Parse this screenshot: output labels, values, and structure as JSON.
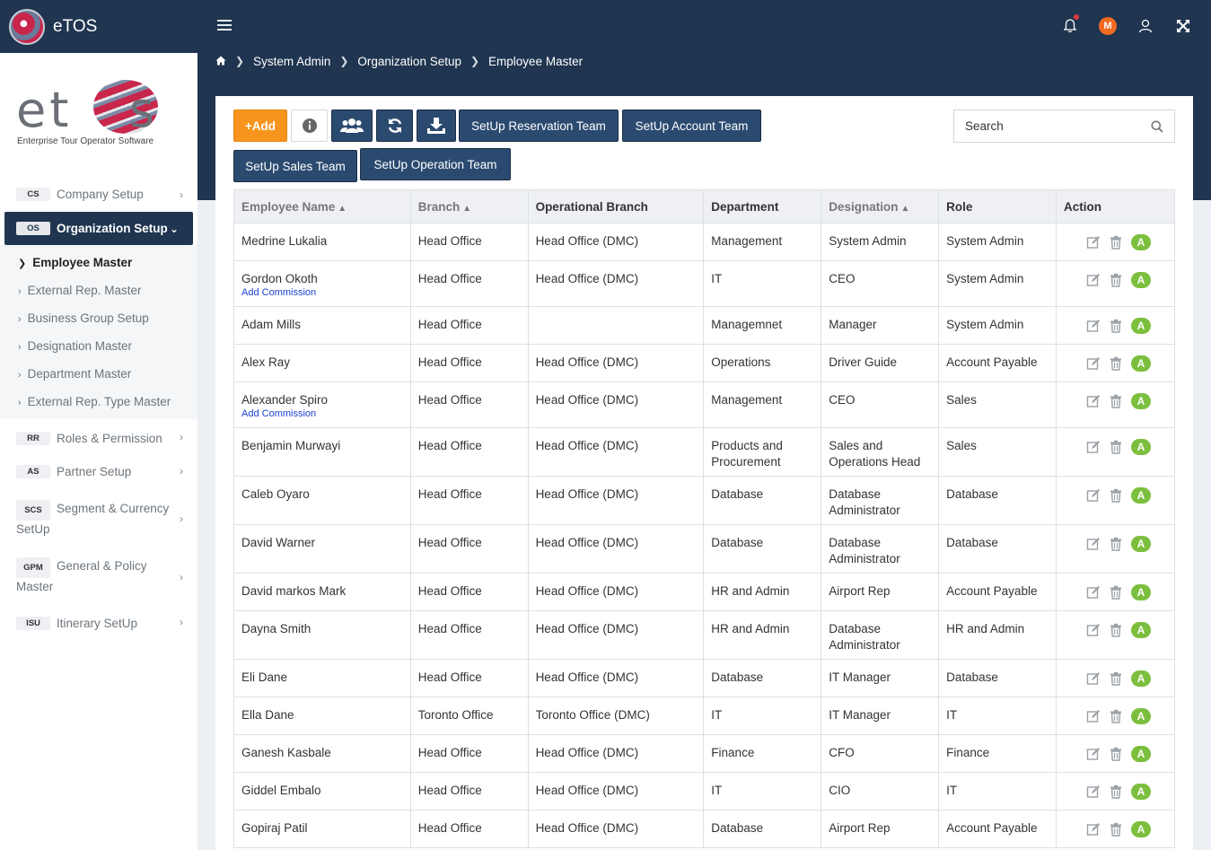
{
  "app": {
    "name": "eTOS"
  },
  "topbar": {
    "avatar_initial": "M"
  },
  "breadcrumb": [
    "System Admin",
    "Organization Setup",
    "Employee Master"
  ],
  "logo": {
    "tagline": "Enterprise Tour Operator Software"
  },
  "sidebar": {
    "items": [
      {
        "abbr": "CS",
        "label": "Company Setup"
      },
      {
        "abbr": "OS",
        "label": "Organization Setup",
        "active": true
      },
      {
        "abbr": "RR",
        "label": "Roles & Permission"
      },
      {
        "abbr": "AS",
        "label": "Partner Setup"
      },
      {
        "abbr": "SCS",
        "label": "Segment & Currency SetUp"
      },
      {
        "abbr": "GPM",
        "label": "General & Policy Master"
      },
      {
        "abbr": "ISU",
        "label": "Itinerary SetUp"
      }
    ],
    "submenu": [
      "Employee Master",
      "External Rep. Master",
      "Business Group Setup",
      "Designation Master",
      "Department Master",
      "External Rep. Type Master"
    ]
  },
  "toolbar": {
    "add_label": "+Add",
    "reservation_team": "SetUp Reservation Team",
    "account_team": "SetUp Account Team",
    "sales_team": "SetUp Sales Team",
    "operation_team": "SetUp Operation Team"
  },
  "search": {
    "placeholder": "Search"
  },
  "table": {
    "headers": [
      "Employee Name",
      "Branch",
      "Operational Branch",
      "Department",
      "Designation",
      "Role",
      "Action"
    ],
    "rows": [
      {
        "name": "Medrine Lukalia",
        "branch": "Head Office",
        "op_branch": "Head Office (DMC)",
        "department": "Management",
        "designation": "System Admin",
        "role": "System Admin"
      },
      {
        "name": "Gordon Okoth",
        "commission": "Add Commission",
        "branch": "Head Office",
        "op_branch": "Head Office (DMC)",
        "department": "IT",
        "designation": "CEO",
        "role": "System Admin"
      },
      {
        "name": "Adam Mills",
        "branch": "Head Office",
        "op_branch": "",
        "department": "Managemnet",
        "designation": "Manager",
        "role": "System Admin"
      },
      {
        "name": "Alex Ray",
        "branch": "Head Office",
        "op_branch": "Head Office (DMC)",
        "department": "Operations",
        "designation": "Driver Guide",
        "role": "Account Payable"
      },
      {
        "name": "Alexander Spiro",
        "commission": "Add Commission",
        "branch": "Head Office",
        "op_branch": "Head Office (DMC)",
        "department": "Management",
        "designation": "CEO",
        "role": "Sales"
      },
      {
        "name": "Benjamin Murwayi",
        "branch": "Head Office",
        "op_branch": "Head Office (DMC)",
        "department": "Products and Procurement",
        "designation": "Sales and Operations Head",
        "role": "Sales"
      },
      {
        "name": "Caleb Oyaro",
        "branch": "Head Office",
        "op_branch": "Head Office (DMC)",
        "department": "Database",
        "designation": "Database Administrator",
        "role": "Database"
      },
      {
        "name": "David Warner",
        "branch": "Head Office",
        "op_branch": "Head Office (DMC)",
        "department": "Database",
        "designation": "Database Administrator",
        "role": "Database"
      },
      {
        "name": "David markos Mark",
        "branch": "Head Office",
        "op_branch": "Head Office (DMC)",
        "department": "HR and Admin",
        "designation": "Airport Rep",
        "role": "Account Payable"
      },
      {
        "name": "Dayna Smith",
        "branch": "Head Office",
        "op_branch": "Head Office (DMC)",
        "department": "HR and Admin",
        "designation": "Database Administrator",
        "role": "HR and Admin"
      },
      {
        "name": "Eli Dane",
        "branch": "Head Office",
        "op_branch": "Head Office (DMC)",
        "department": "Database",
        "designation": "IT Manager",
        "role": "Database"
      },
      {
        "name": "Ella Dane",
        "branch": "Toronto Office",
        "op_branch": "Toronto Office (DMC)",
        "department": "IT",
        "designation": "IT Manager",
        "role": "IT"
      },
      {
        "name": "Ganesh Kasbale",
        "branch": "Head Office",
        "op_branch": "Head Office (DMC)",
        "department": "Finance",
        "designation": "CFO",
        "role": "Finance"
      },
      {
        "name": "Giddel Embalo",
        "branch": "Head Office",
        "op_branch": "Head Office (DMC)",
        "department": "IT",
        "designation": "CIO",
        "role": "IT"
      },
      {
        "name": "Gopiraj Patil",
        "branch": "Head Office",
        "op_branch": "Head Office (DMC)",
        "department": "Database",
        "designation": "Airport Rep",
        "role": "Account Payable"
      }
    ],
    "action_badge": "A"
  }
}
